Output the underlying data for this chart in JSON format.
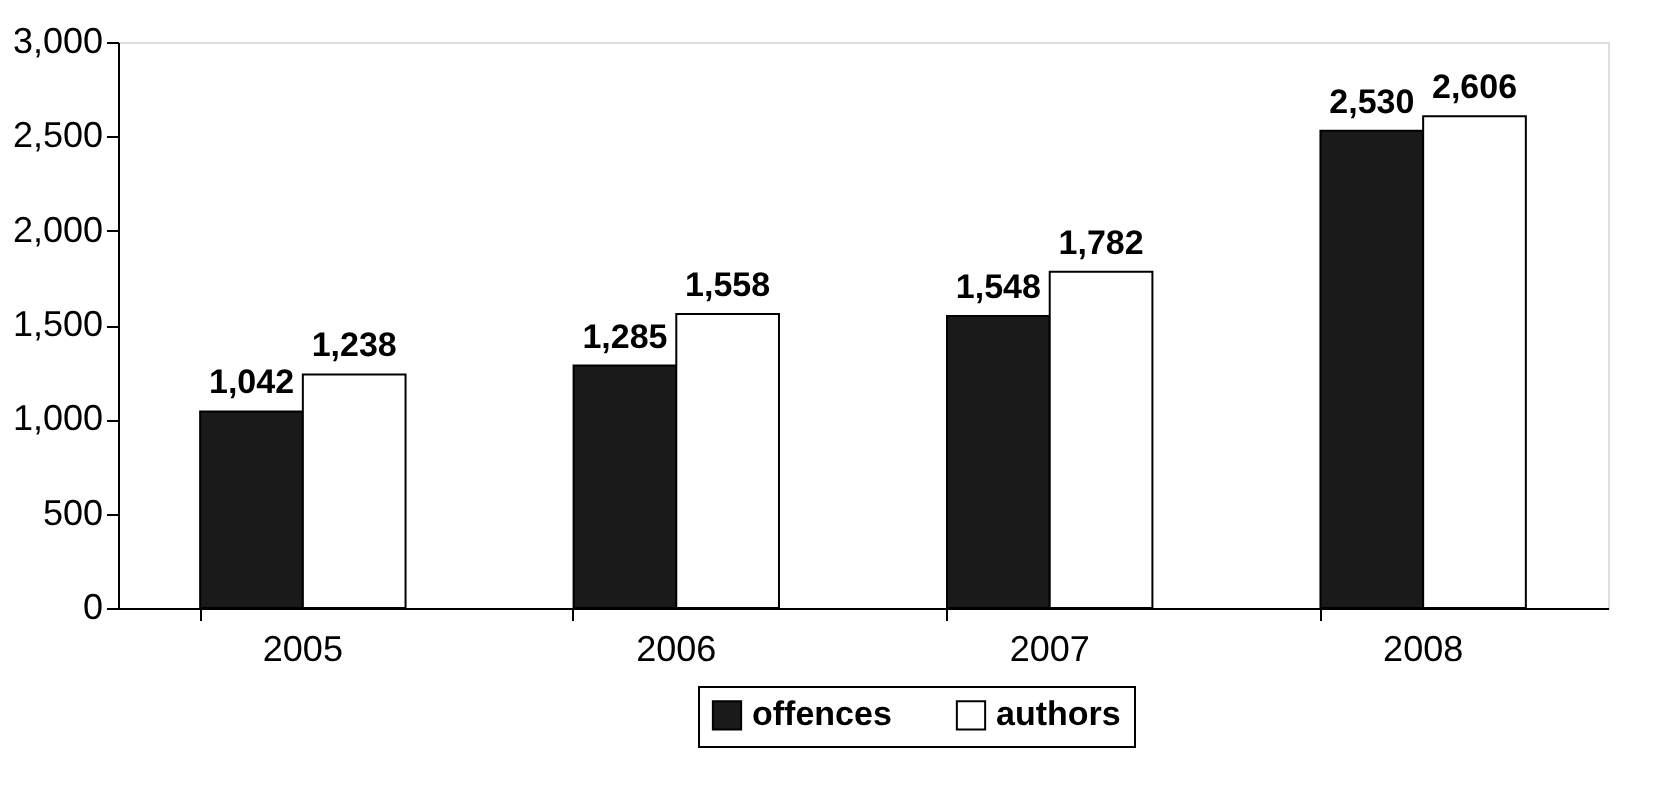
{
  "chart_data": {
    "type": "bar",
    "categories": [
      "2005",
      "2006",
      "2007",
      "2008"
    ],
    "series": [
      {
        "name": "offences",
        "color": "#1a1a1a",
        "values": [
          1042,
          1285,
          1548,
          2530
        ],
        "value_labels": [
          "1,042",
          "1,285",
          "1,548",
          "2,530"
        ]
      },
      {
        "name": "authors",
        "color": "#ffffff",
        "values": [
          1238,
          1558,
          1782,
          2606
        ],
        "value_labels": [
          "1,238",
          "1,558",
          "1,782",
          "2,606"
        ]
      }
    ],
    "ylim": [
      0,
      3000
    ],
    "yticks": [
      0,
      500,
      {
        "value": 1000,
        "label": "1,000"
      },
      {
        "value": 1500,
        "label": "1,500"
      },
      {
        "value": 2000,
        "label": "2,000"
      },
      {
        "value": 2500,
        "label": "2,500"
      },
      {
        "value": 3000,
        "label": "3,000"
      }
    ],
    "grid": false,
    "legend": "bottom"
  }
}
